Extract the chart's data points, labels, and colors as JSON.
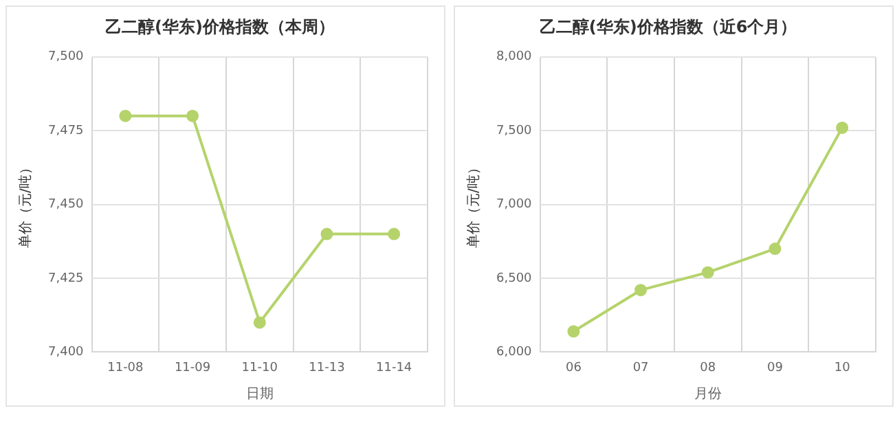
{
  "chart_data": [
    {
      "type": "line",
      "title": "乙二醇(华东)价格指数（本周）",
      "xlabel": "日期",
      "ylabel": "单价（元/吨）",
      "categories": [
        "11-08",
        "11-09",
        "11-10",
        "11-13",
        "11-14"
      ],
      "series": [
        {
          "color": "#b5d36b",
          "values": [
            7480,
            7480,
            7410,
            7440,
            7440
          ]
        }
      ],
      "ylim": [
        7400,
        7500
      ],
      "yticks": [
        {
          "value": 7400,
          "label": "7,400"
        },
        {
          "value": 7425,
          "label": "7,425"
        },
        {
          "value": 7450,
          "label": "7,450"
        },
        {
          "value": 7475,
          "label": "7,475"
        },
        {
          "value": 7500,
          "label": "7,500"
        }
      ],
      "grid": true,
      "marker": "circle",
      "line_style": "solid"
    },
    {
      "type": "line",
      "title": "乙二醇(华东)价格指数（近6个月）",
      "xlabel": "月份",
      "ylabel": "单价（元/吨）",
      "categories": [
        "06",
        "07",
        "08",
        "09",
        "10"
      ],
      "series": [
        {
          "color": "#b5d36b",
          "values": [
            6140,
            6420,
            6540,
            6700,
            7520
          ]
        }
      ],
      "ylim": [
        6000,
        8000
      ],
      "yticks": [
        {
          "value": 6000,
          "label": "6,000"
        },
        {
          "value": 6500,
          "label": "6,500"
        },
        {
          "value": 7000,
          "label": "7,000"
        },
        {
          "value": 7500,
          "label": "7,500"
        },
        {
          "value": 8000,
          "label": "8,000"
        }
      ],
      "grid": true,
      "marker": "circle",
      "line_style": "solid"
    }
  ]
}
